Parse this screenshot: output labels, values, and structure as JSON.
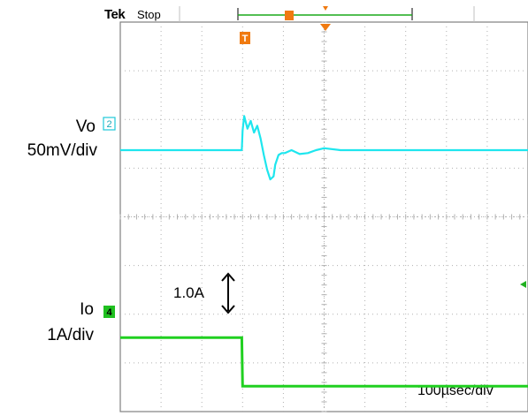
{
  "header": {
    "brand": "Tek",
    "state": "Stop"
  },
  "markers": {
    "trigger": "T",
    "ch2": "2",
    "ch4": "4"
  },
  "labels": {
    "ch2_name": "Vo",
    "ch2_scale": "50mV/div",
    "ch4_name": "Io",
    "ch4_scale": "1A/div",
    "step_annotation": "1.0A",
    "timebase": "100µsec/div"
  },
  "colors": {
    "ch2": "#1ee6ee",
    "ch4": "#20d020",
    "trigger": "#f07a10",
    "grid": "#b0b0b0"
  },
  "chart_data": {
    "type": "line",
    "xlim": [
      -150,
      350
    ],
    "grid": true,
    "series": [
      {
        "name": "Vo",
        "unit": "mV",
        "x": [
          -150,
          -1,
          0,
          2,
          6,
          10,
          14,
          18,
          22,
          26,
          30,
          34,
          38,
          40,
          44,
          48,
          52,
          60,
          70,
          80,
          90,
          100,
          120,
          150,
          200,
          250,
          300,
          350
        ],
        "y": [
          0,
          0,
          20,
          35,
          22,
          30,
          18,
          25,
          12,
          -5,
          -20,
          -30,
          -27,
          -15,
          -5,
          -3,
          -3,
          0,
          -4,
          -3,
          0,
          2,
          0,
          0,
          0,
          0,
          0,
          0
        ]
      },
      {
        "name": "Io",
        "unit": "A",
        "x": [
          -150,
          -1,
          0,
          350
        ],
        "y": [
          1.0,
          1.0,
          0,
          0
        ]
      }
    ]
  }
}
